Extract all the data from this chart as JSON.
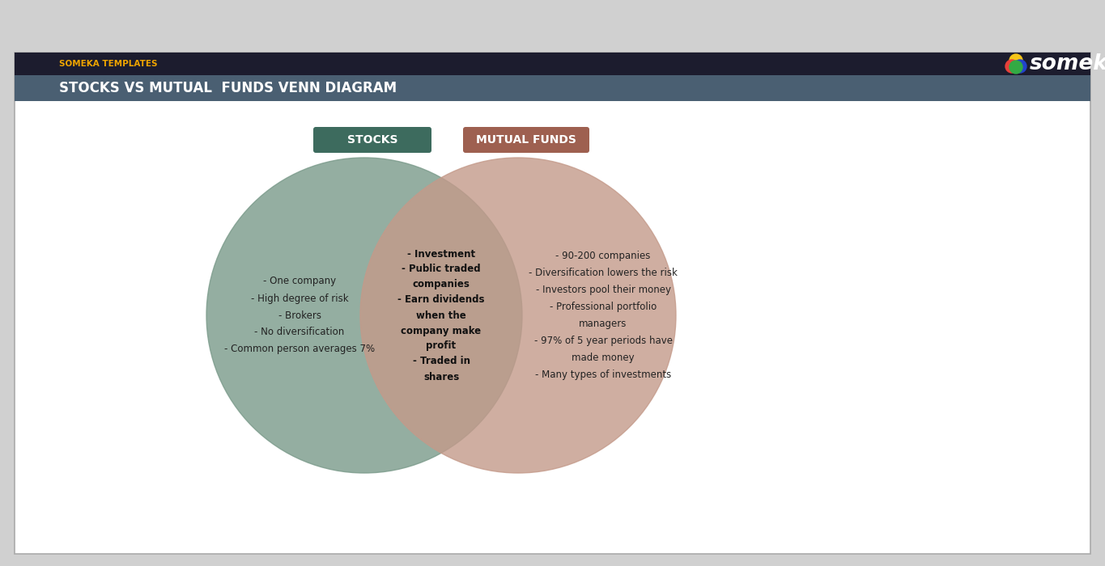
{
  "title_bar_color": "#1c1c2e",
  "subtitle_bar_color": "#4a5f72",
  "header_text": "SOMEKA TEMPLATES",
  "header_text_color": "#f0a500",
  "title_text": "STOCKS VS MUTUAL  FUNDS VENN DIAGRAM",
  "title_text_color": "#ffffff",
  "outer_bg_color": "#d0d0d0",
  "card_bg_color": "#ffffff",
  "border_color": "#aaaaaa",
  "stocks_circle_color": "#7a9a8a",
  "mutual_circle_color": "#c49a8a",
  "stocks_label_bg": "#3d6b5e",
  "mutual_label_bg": "#9e6050",
  "stocks_label_text": "STOCKS",
  "mutual_label_text": "MUTUAL FUNDS",
  "label_text_color": "#ffffff",
  "stocks_only_text": "- One company\n- High degree of risk\n- Brokers\n- No diversification\n- Common person averages 7%",
  "intersection_text": "- Investment\n- Public traded\ncompanies\n- Earn dividends\nwhen the\ncompany make\nprofit\n- Traded in\nshares",
  "mutual_only_text": "- 90-200 companies\n- Diversification lowers the risk\n- Investors pool their money\n- Professional portfolio\nmanagers\n- 97% of 5 year periods have\nmade money\n- Many types of investments",
  "fig_width": 13.65,
  "fig_height": 7.0,
  "dpi": 100
}
